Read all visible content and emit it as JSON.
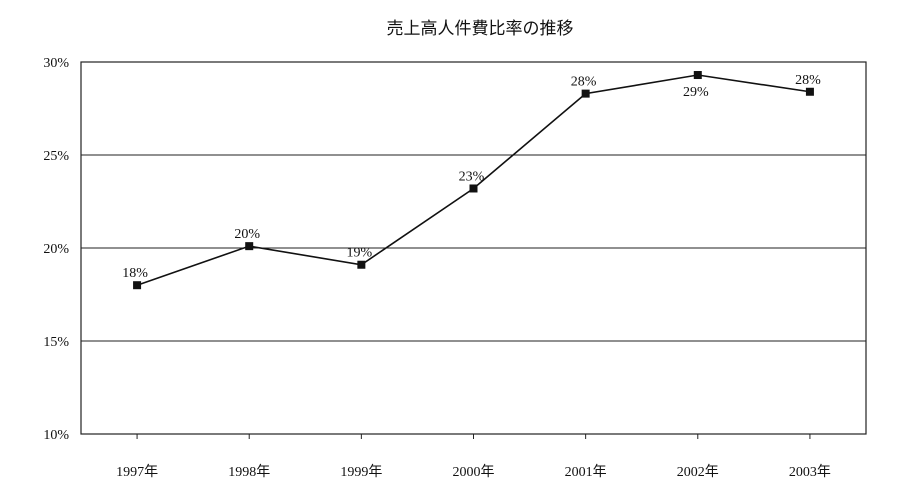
{
  "chart_data": {
    "type": "line",
    "title": "売上高人件費比率の推移",
    "categories": [
      "1997年",
      "1998年",
      "1999年",
      "2000年",
      "2001年",
      "2002年",
      "2003年"
    ],
    "series": [
      {
        "values": [
          18,
          20,
          19,
          23,
          28,
          29,
          28
        ],
        "data_labels": [
          "18%",
          "20%",
          "19%",
          "23%",
          "28%",
          "29%",
          "28%"
        ],
        "precise_values": [
          18.0,
          20.1,
          19.1,
          23.2,
          28.3,
          29.3,
          28.4
        ]
      }
    ],
    "yticks": [
      "30%",
      "25%",
      "20%",
      "15%",
      "10%"
    ],
    "ylim": [
      10,
      30
    ],
    "grid": "horizontal",
    "legend": "none",
    "marker": "square",
    "line_color": "#111111"
  }
}
